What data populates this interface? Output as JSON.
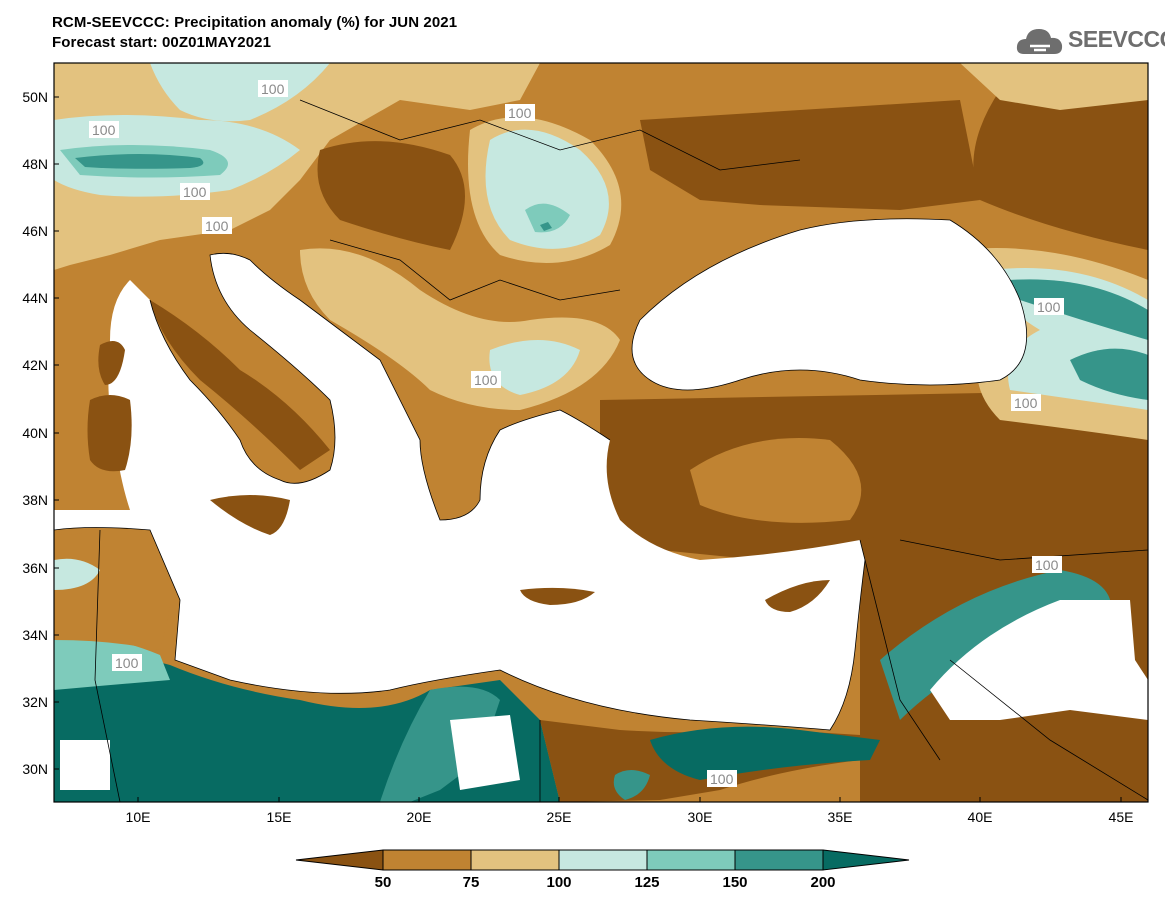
{
  "header": {
    "title": "RCM-SEEVCCC: Precipitation anomaly (%) for JUN 2021",
    "subtitle": "Forecast start: 00Z01MAY2021"
  },
  "logo": {
    "text": "SEEVCCC",
    "icon": "cloud-icon"
  },
  "map": {
    "lat_labels": [
      "50N",
      "48N",
      "46N",
      "44N",
      "42N",
      "40N",
      "38N",
      "36N",
      "34N",
      "32N",
      "30N"
    ],
    "lon_labels": [
      "10E",
      "15E",
      "20E",
      "25E",
      "30E",
      "35E",
      "40E",
      "45E"
    ],
    "contour_label": "100",
    "lat_range": [
      29,
      51
    ],
    "lon_range": [
      7,
      46
    ]
  },
  "colorbar": {
    "labels": [
      "50",
      "75",
      "100",
      "125",
      "150",
      "200"
    ],
    "colors": [
      "#8a5212",
      "#c08332",
      "#e3c27f",
      "#c6e8e0",
      "#7ecbbb",
      "#36958a",
      "#076b62"
    ]
  }
}
